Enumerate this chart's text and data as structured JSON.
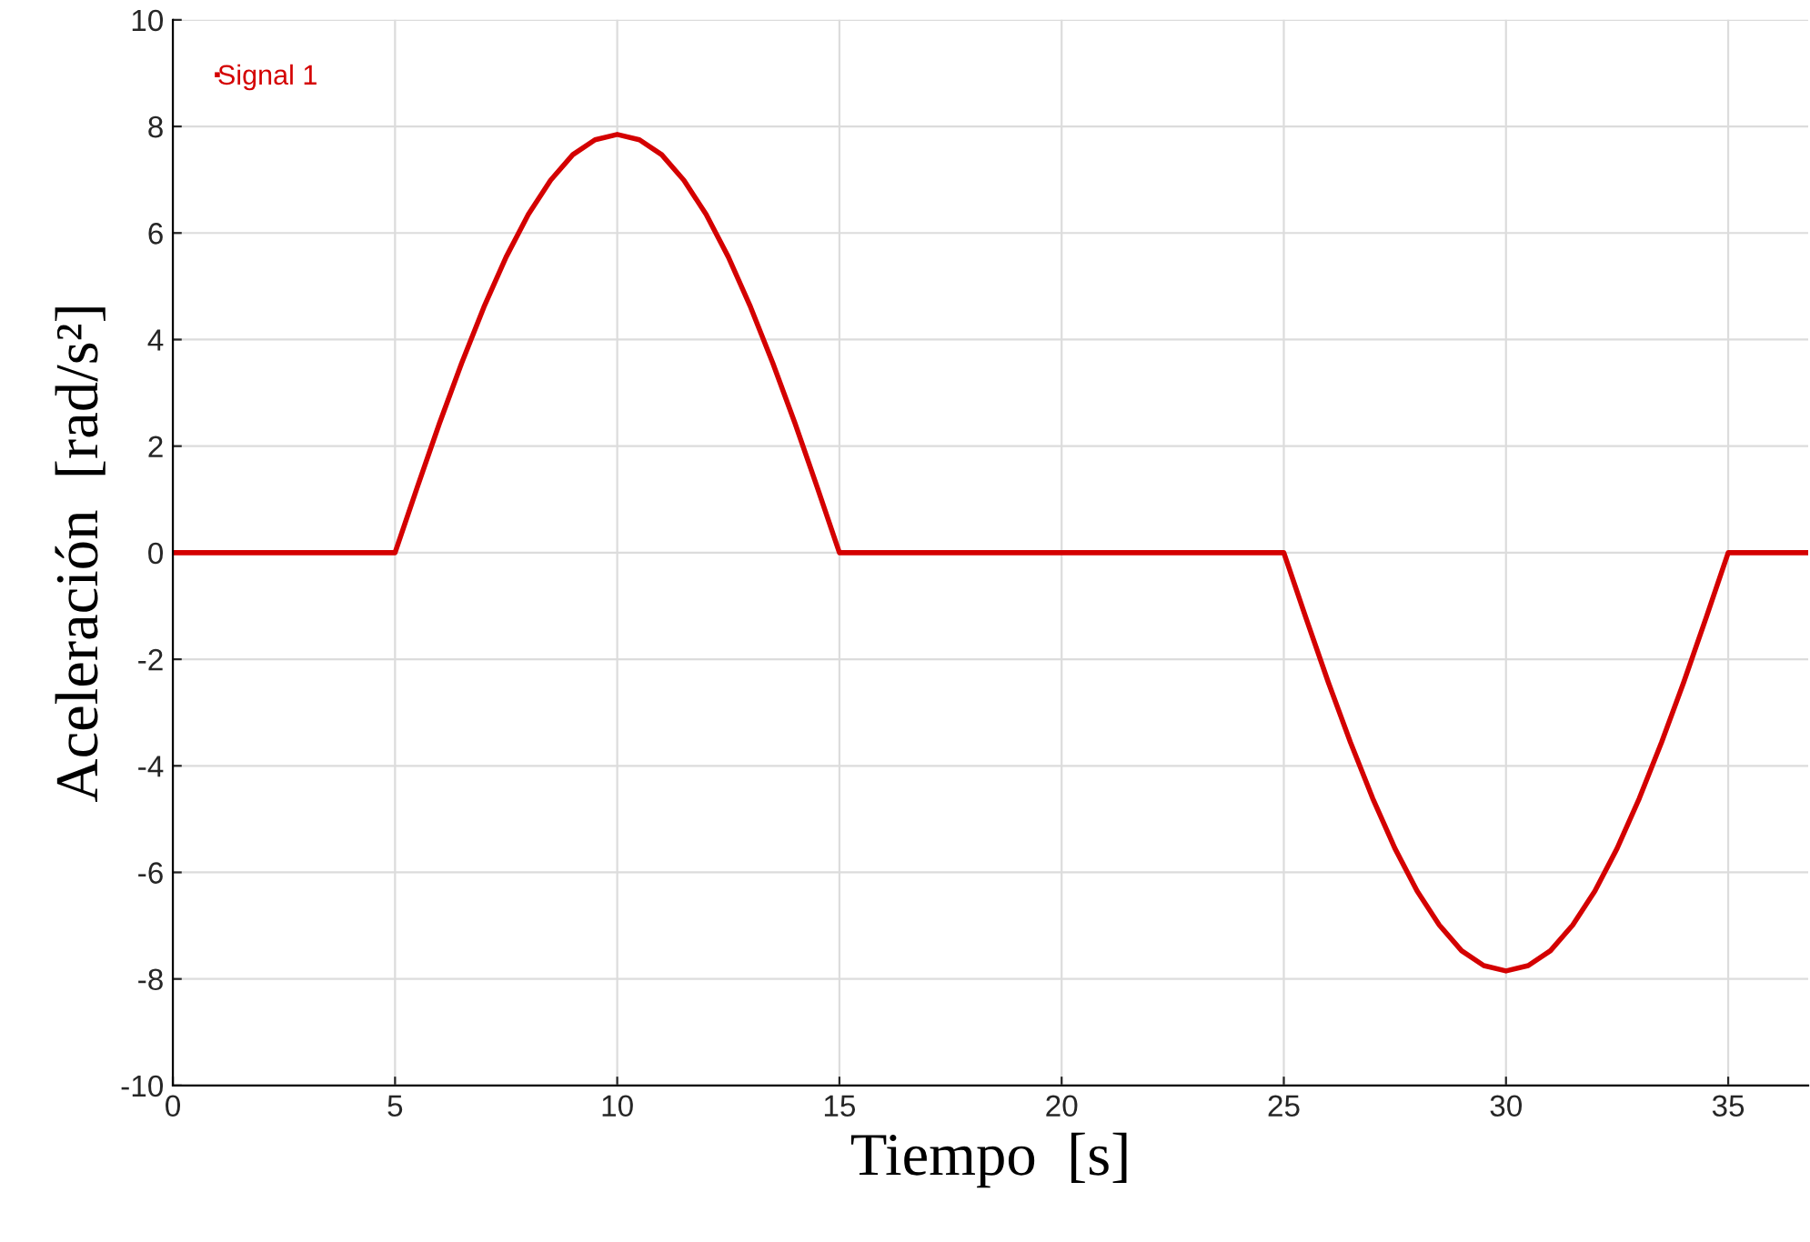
{
  "chart_data": {
    "type": "line",
    "xlabel": "Tiempo  [s]",
    "ylabel": "Aceleración  [rad/s²]",
    "x": [
      0,
      5,
      5.5,
      6,
      6.5,
      7,
      7.5,
      8,
      8.5,
      9,
      9.5,
      10,
      10.5,
      11,
      11.5,
      12,
      12.5,
      13,
      13.5,
      14,
      14.5,
      15,
      25,
      25.5,
      26,
      26.5,
      27,
      27.5,
      28,
      28.5,
      29,
      29.5,
      30,
      30.5,
      31,
      31.5,
      32,
      32.5,
      33,
      33.5,
      34,
      34.5,
      35,
      36.8
    ],
    "series": [
      {
        "name": "Signal 1",
        "color": "#d40000",
        "values": [
          0,
          0,
          1.23,
          2.43,
          3.56,
          4.61,
          5.55,
          6.35,
          6.99,
          7.47,
          7.75,
          7.85,
          7.75,
          7.47,
          6.99,
          6.35,
          5.55,
          4.61,
          3.56,
          2.43,
          1.23,
          0,
          0,
          -1.23,
          -2.43,
          -3.56,
          -4.61,
          -5.55,
          -6.35,
          -6.99,
          -7.47,
          -7.75,
          -7.85,
          -7.75,
          -7.47,
          -6.99,
          -6.35,
          -5.55,
          -4.61,
          -3.56,
          -2.43,
          -1.23,
          0,
          0
        ]
      }
    ],
    "xlim": [
      0,
      36.8
    ],
    "xticks": [
      0,
      5,
      10,
      15,
      20,
      25,
      30,
      35
    ],
    "ylim": [
      -10,
      10
    ],
    "yticks": [
      -10,
      -8,
      -6,
      -4,
      -2,
      0,
      2,
      4,
      6,
      8,
      10
    ],
    "grid": true,
    "legend": "top left",
    "marker": "none",
    "line_style": "solid"
  }
}
